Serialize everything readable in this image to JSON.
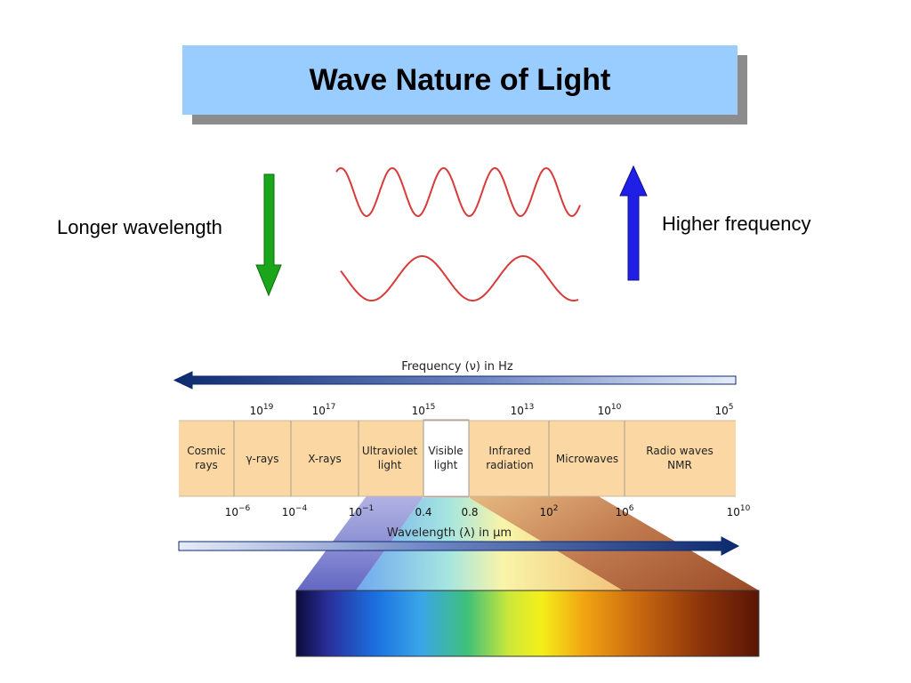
{
  "title": "Wave Nature of Light",
  "left_label": "Longer wavelength",
  "right_label": "Higher frequency",
  "colors": {
    "title_bg": "#99ccff",
    "wave": "#d93a3a",
    "down_arrow": "#1aa51a",
    "up_arrow": "#1f1fe6",
    "band_bg": "#fbd7a4",
    "scale_arrow": "#0d2a6e"
  },
  "spectrum": {
    "frequency_axis_label": "Frequency (ν) in Hz",
    "frequency_ticks": [
      {
        "base": "10",
        "exp": "19"
      },
      {
        "base": "10",
        "exp": "17"
      },
      {
        "base": "10",
        "exp": "15"
      },
      {
        "base": "10",
        "exp": "13"
      },
      {
        "base": "10",
        "exp": "10"
      },
      {
        "base": "10",
        "exp": "5"
      }
    ],
    "regions": [
      {
        "line1": "Cosmic",
        "line2": "rays"
      },
      {
        "line1": "γ-rays",
        "line2": ""
      },
      {
        "line1": "X-rays",
        "line2": ""
      },
      {
        "line1": "Ultraviolet",
        "line2": "light"
      },
      {
        "line1": "Visible",
        "line2": "light"
      },
      {
        "line1": "Infrared",
        "line2": "radiation"
      },
      {
        "line1": "Microwaves",
        "line2": ""
      },
      {
        "line1": "Radio waves",
        "line2": "NMR"
      }
    ],
    "wavelength_ticks": [
      {
        "base": "10",
        "exp": "−6"
      },
      {
        "base": "10",
        "exp": "−4"
      },
      {
        "base": "10",
        "exp": "−1"
      },
      {
        "base": "0.4",
        "exp": ""
      },
      {
        "base": "0.8",
        "exp": ""
      },
      {
        "base": "10",
        "exp": "2"
      },
      {
        "base": "10",
        "exp": "6"
      },
      {
        "base": "10",
        "exp": "10"
      }
    ],
    "wavelength_axis_label": "Wavelength (λ) in μm"
  }
}
